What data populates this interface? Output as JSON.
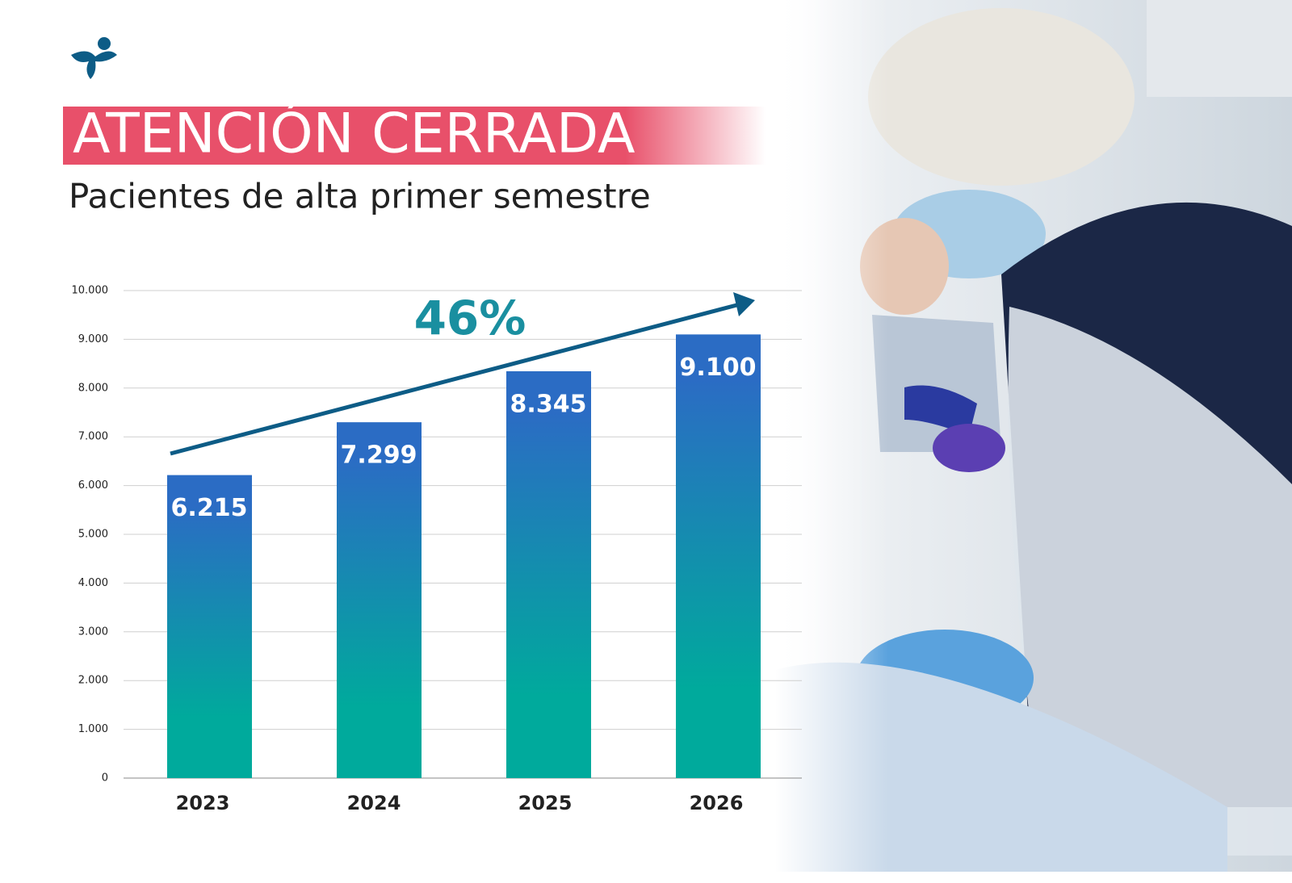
{
  "chart_data": {
    "type": "bar",
    "title": "ATENCIÓN CERRADA",
    "subtitle": "Pacientes de alta primer semestre",
    "annotation": "46%",
    "categories": [
      "2023",
      "2024",
      "2025",
      "2026"
    ],
    "values": [
      6215,
      7299,
      8345,
      9100
    ],
    "value_labels": [
      "6.215",
      "7.299",
      "8.345",
      "9.100"
    ],
    "colors": [
      "#2b6cc4",
      "#00aa9c"
    ],
    "ylim": [
      0,
      10000
    ],
    "yticks": [
      0,
      {
        "value": 1000,
        "label": "1.000"
      },
      {
        "value": 2000,
        "label": "2.000"
      },
      {
        "value": 3000,
        "label": "3.000"
      },
      {
        "value": 4000,
        "label": "4.000"
      },
      {
        "value": 5000,
        "label": "5.000"
      },
      {
        "value": 6000,
        "label": "6.000"
      },
      {
        "value": 7000,
        "label": "7.000"
      },
      {
        "value": 8000,
        "label": "8.000"
      },
      {
        "value": 9000,
        "label": "9.000"
      },
      {
        "value": 10000,
        "label": "10.000"
      }
    ],
    "grid": true
  }
}
